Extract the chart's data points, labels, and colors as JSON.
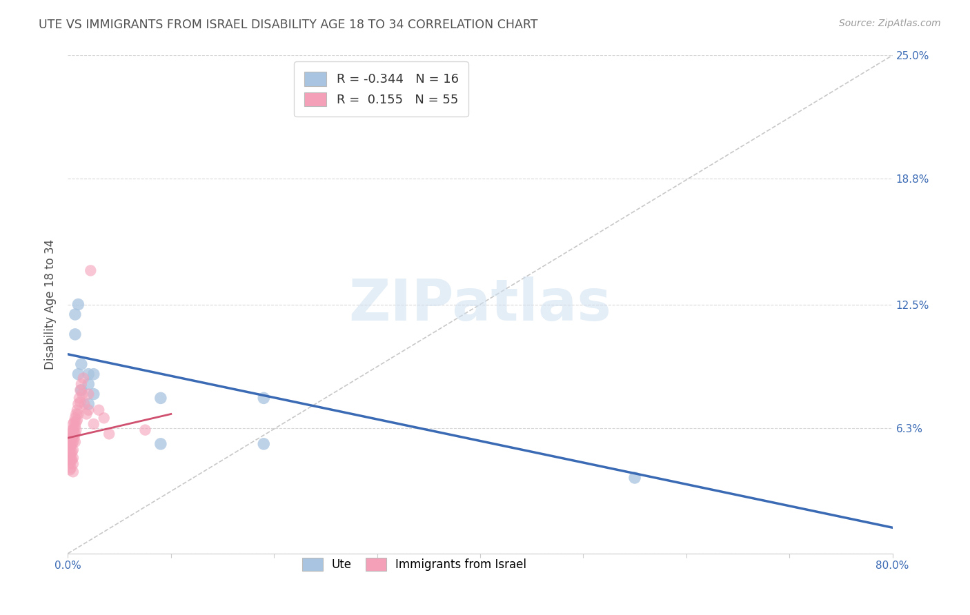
{
  "title": "UTE VS IMMIGRANTS FROM ISRAEL DISABILITY AGE 18 TO 34 CORRELATION CHART",
  "source": "Source: ZipAtlas.com",
  "ylabel": "Disability Age 18 to 34",
  "xlim": [
    0,
    0.8
  ],
  "ylim": [
    0,
    0.25
  ],
  "yticks": [
    0.0,
    0.063,
    0.125,
    0.188,
    0.25
  ],
  "ytick_labels": [
    "",
    "6.3%",
    "12.5%",
    "18.8%",
    "25.0%"
  ],
  "xticks": [
    0.0,
    0.1,
    0.2,
    0.3,
    0.4,
    0.5,
    0.6,
    0.7,
    0.8
  ],
  "xtick_labels": [
    "0.0%",
    "",
    "",
    "",
    "",
    "",
    "",
    "",
    "80.0%"
  ],
  "legend_r_blue": "-0.344",
  "legend_n_blue": "16",
  "legend_r_pink": "0.155",
  "legend_n_pink": "55",
  "blue_color": "#a8c4e0",
  "pink_color": "#f4a0b8",
  "blue_line_color": "#3a6ab4",
  "pink_line_color": "#d05070",
  "dashed_line_color": "#c8c8c8",
  "watermark_text": "ZIPatlas",
  "ute_points_x": [
    0.007,
    0.007,
    0.01,
    0.01,
    0.013,
    0.013,
    0.02,
    0.02,
    0.02,
    0.025,
    0.025,
    0.09,
    0.09,
    0.55,
    0.19,
    0.19
  ],
  "ute_points_y": [
    0.11,
    0.12,
    0.125,
    0.09,
    0.095,
    0.082,
    0.085,
    0.075,
    0.09,
    0.09,
    0.08,
    0.078,
    0.055,
    0.038,
    0.055,
    0.078
  ],
  "israel_points_x": [
    0.002,
    0.002,
    0.002,
    0.002,
    0.002,
    0.002,
    0.003,
    0.003,
    0.003,
    0.003,
    0.003,
    0.003,
    0.004,
    0.004,
    0.004,
    0.004,
    0.004,
    0.005,
    0.005,
    0.005,
    0.005,
    0.005,
    0.005,
    0.005,
    0.005,
    0.006,
    0.006,
    0.006,
    0.007,
    0.007,
    0.007,
    0.007,
    0.008,
    0.008,
    0.008,
    0.009,
    0.009,
    0.01,
    0.01,
    0.011,
    0.012,
    0.012,
    0.013,
    0.014,
    0.015,
    0.016,
    0.018,
    0.02,
    0.02,
    0.022,
    0.025,
    0.03,
    0.035,
    0.04,
    0.075
  ],
  "israel_points_y": [
    0.058,
    0.055,
    0.052,
    0.048,
    0.045,
    0.042,
    0.06,
    0.057,
    0.054,
    0.05,
    0.047,
    0.043,
    0.062,
    0.058,
    0.055,
    0.051,
    0.047,
    0.065,
    0.062,
    0.059,
    0.056,
    0.052,
    0.048,
    0.045,
    0.041,
    0.066,
    0.062,
    0.058,
    0.068,
    0.064,
    0.06,
    0.056,
    0.07,
    0.066,
    0.062,
    0.072,
    0.067,
    0.075,
    0.07,
    0.078,
    0.082,
    0.076,
    0.085,
    0.08,
    0.088,
    0.075,
    0.07,
    0.08,
    0.072,
    0.142,
    0.065,
    0.072,
    0.068,
    0.06,
    0.062
  ],
  "blue_trend_x": [
    0.0,
    0.8
  ],
  "blue_trend_y": [
    0.1,
    0.013
  ],
  "pink_trend_x": [
    0.0,
    0.1
  ],
  "pink_trend_y": [
    0.058,
    0.07
  ],
  "dashed_trend_x": [
    0.0,
    0.8
  ],
  "dashed_trend_y": [
    0.0,
    0.25
  ],
  "background_color": "#ffffff",
  "grid_color": "#d8d8d8",
  "title_color": "#505050",
  "axis_label_color": "#505050",
  "tick_color_right": "#3a6ab4",
  "tick_color_bottom": "#3a6ab4"
}
